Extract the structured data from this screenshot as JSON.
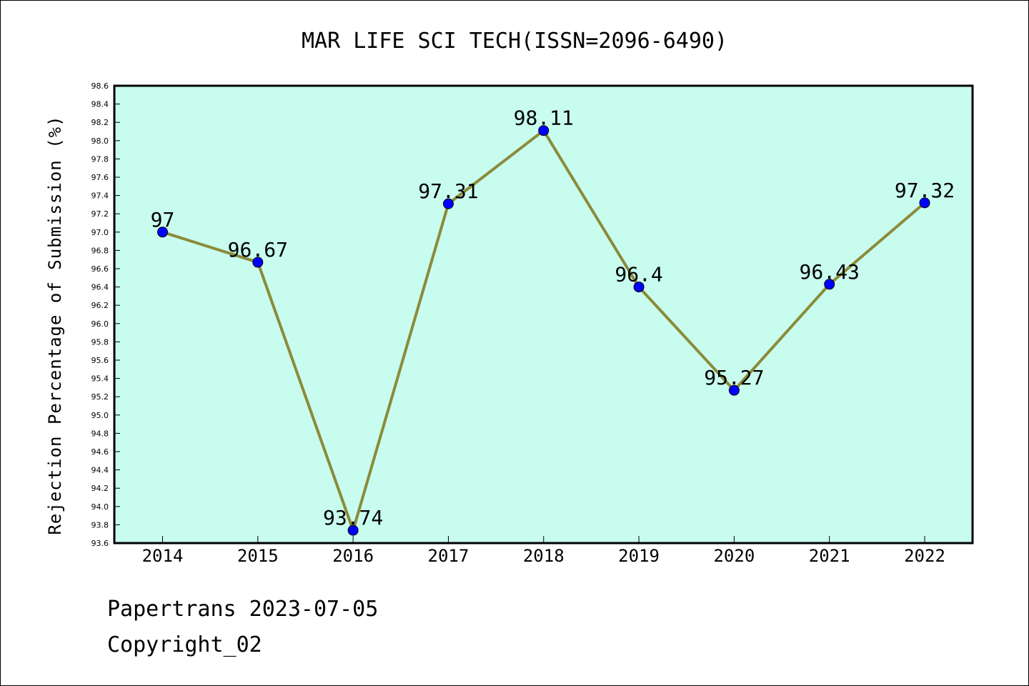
{
  "chart_data": {
    "type": "line",
    "title": "MAR LIFE SCI TECH(ISSN=2096-6490)",
    "xlabel": "",
    "ylabel": "Rejection Percentage of Submission (%)",
    "categories": [
      "2014",
      "2015",
      "2016",
      "2017",
      "2018",
      "2019",
      "2020",
      "2021",
      "2022"
    ],
    "series": [
      {
        "values": [
          97,
          96.67,
          93.74,
          97.31,
          98.11,
          96.4,
          95.27,
          96.43,
          97.32
        ],
        "labels": [
          "97",
          "96.67",
          "93.74",
          "97.31",
          "98.11",
          "96.4",
          "95.27",
          "96.43",
          "97.32"
        ]
      }
    ],
    "ylim": [
      93.6,
      98.6
    ],
    "ytick_step": 0.2,
    "grid": false,
    "legend": "none",
    "colors": {
      "plot_background": "#c8fcee",
      "line": "#8b8b3a",
      "marker": "#0000ff"
    }
  },
  "footer": {
    "line1": "Papertrans 2023-07-05",
    "line2": "Copyright_02"
  }
}
